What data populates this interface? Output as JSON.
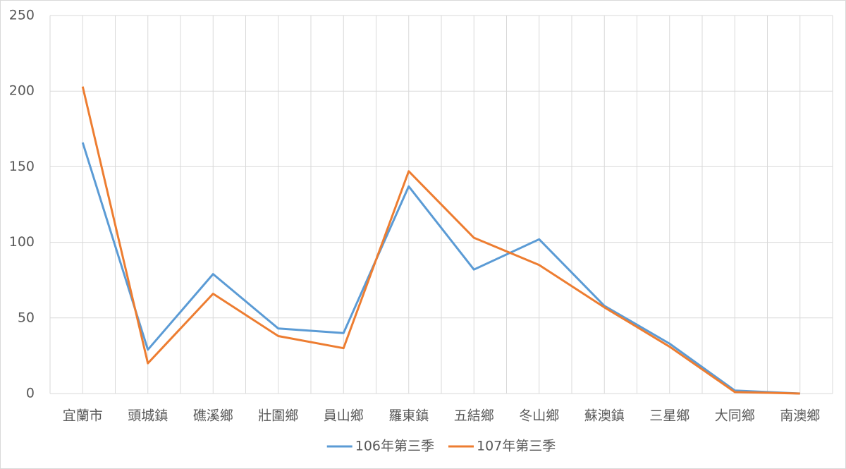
{
  "chart_data": {
    "type": "line",
    "categories": [
      "宜蘭市",
      "頭城鎮",
      "礁溪鄉",
      "壯圍鄉",
      "員山鄉",
      "羅東鎮",
      "五結鄉",
      "冬山鄉",
      "蘇澳鎮",
      "三星鄉",
      "大同鄉",
      "南澳鄉"
    ],
    "series": [
      {
        "name": "106年第三季",
        "color": "#5b9bd5",
        "values": [
          166,
          29,
          79,
          43,
          40,
          137,
          82,
          102,
          58,
          33,
          2,
          0
        ]
      },
      {
        "name": "107年第三季",
        "color": "#ed7d31",
        "values": [
          203,
          20,
          66,
          38,
          30,
          147,
          103,
          85,
          57,
          31,
          1,
          0
        ]
      }
    ],
    "ylim": [
      0,
      250
    ],
    "yticks": [
      0,
      50,
      100,
      150,
      200,
      250
    ],
    "grid": true,
    "legend": "bottom"
  }
}
